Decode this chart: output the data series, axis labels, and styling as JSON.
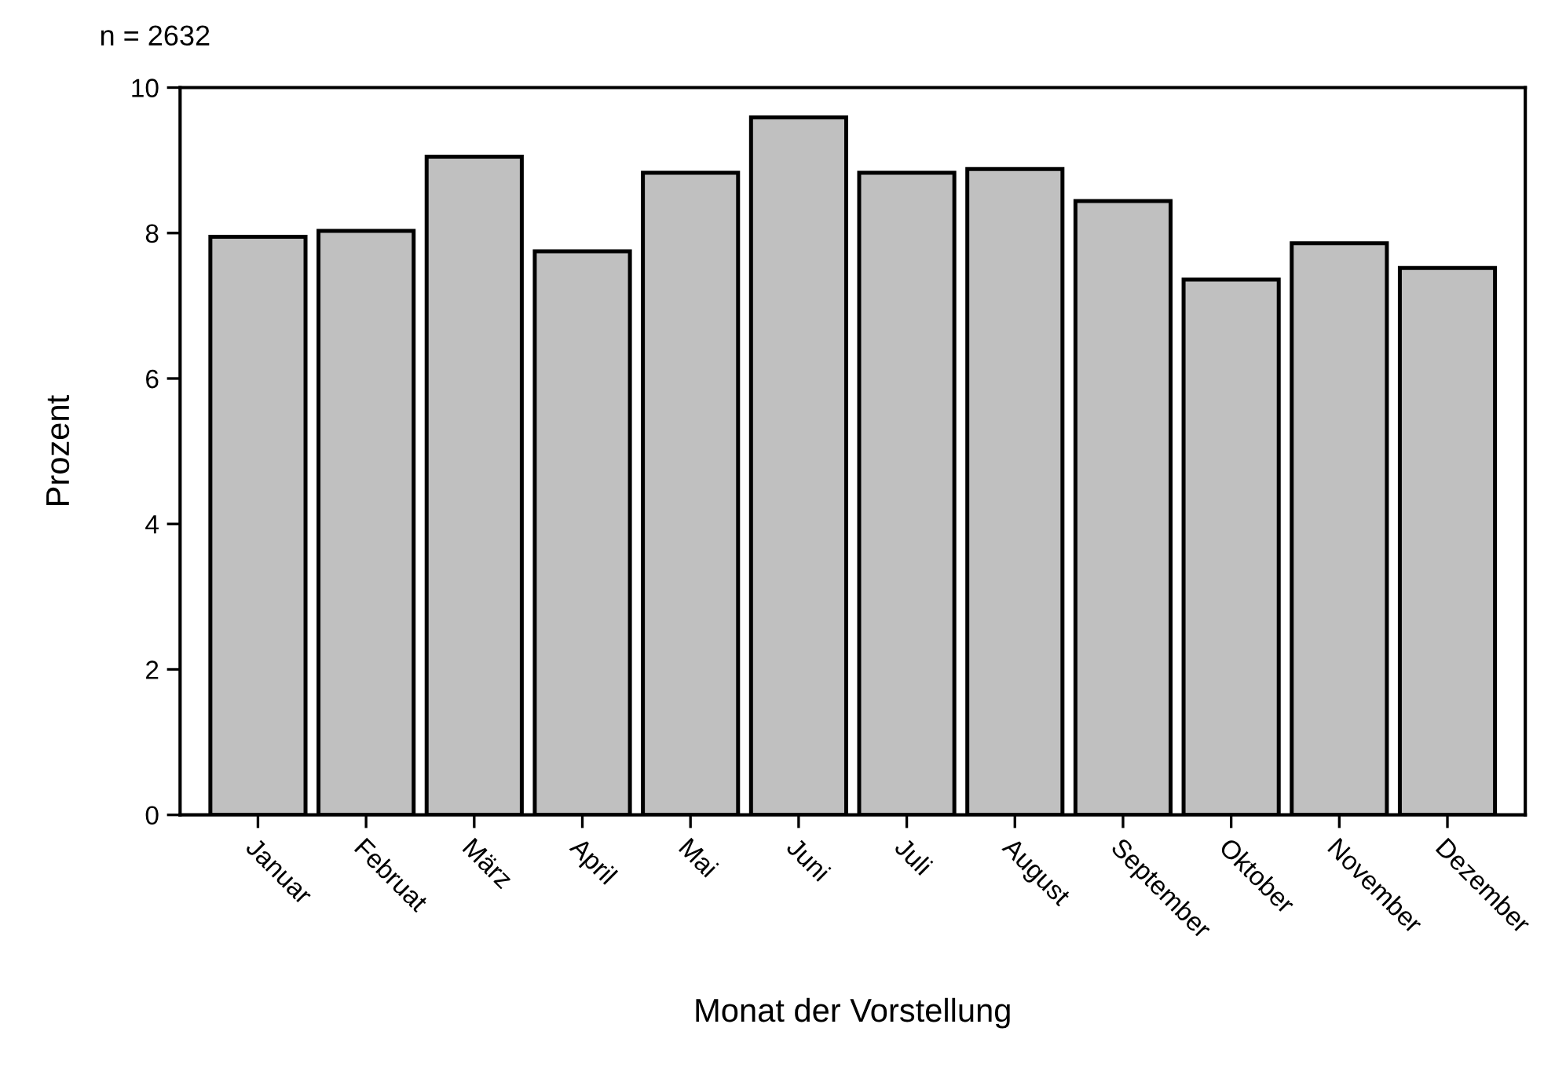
{
  "chart_data": {
    "type": "bar",
    "xlabel": "Monat der Vorstellung",
    "ylabel": "Prozent",
    "annotations": [
      "n = 2632"
    ],
    "categories": [
      "Januar",
      "Februat",
      "März",
      "April",
      "Mai",
      "Juni",
      "Juli",
      "August",
      "September",
      "Oktober",
      "November",
      "Dezember"
    ],
    "values": [
      7.95,
      8.03,
      9.05,
      7.75,
      8.83,
      9.59,
      8.83,
      8.88,
      8.44,
      7.36,
      7.86,
      7.52
    ],
    "color": "#c0c0c0",
    "ylim": [
      0,
      10
    ],
    "yticks": [
      0,
      2,
      4,
      6,
      8,
      10
    ],
    "grid": false,
    "legend": false
  }
}
